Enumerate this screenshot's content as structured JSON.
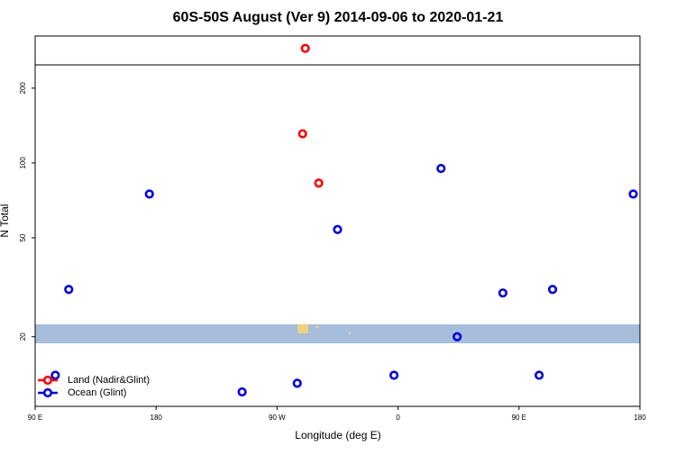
{
  "chart_data": {
    "type": "scatter",
    "title": "60S-50S August (Ver 9)   2014-09-06 to 2020-01-21",
    "x_label": "Longitude (deg E)",
    "y_label": "N Total",
    "log_y": true,
    "xlim": [
      90,
      540
    ],
    "ylim": [
      10.5,
      324
    ],
    "xticks": [
      {
        "value": 90,
        "label": "90 E"
      },
      180,
      {
        "value": 270,
        "label": "90 W"
      },
      {
        "value": 360,
        "label": "0"
      },
      {
        "value": 450,
        "label": "90 E"
      },
      {
        "value": 540,
        "label": "180"
      }
    ],
    "yticks": [
      20,
      50,
      100,
      200
    ],
    "legend": "bottom-left",
    "series": [
      {
        "name": "Land (Nadir&Glint)",
        "color": "#ff0000",
        "x": [
          291,
          289,
          301
        ],
        "values": [
          289,
          131,
          83
        ]
      },
      {
        "name": "Ocean (Glint)",
        "color": "#0000ee",
        "x": [
          105,
          115,
          175,
          244,
          285,
          315,
          357,
          392,
          404,
          438,
          465,
          475,
          535
        ],
        "values": [
          14,
          31,
          75,
          12,
          13,
          54,
          14,
          95,
          20,
          30,
          14,
          31,
          75
        ]
      }
    ]
  }
}
